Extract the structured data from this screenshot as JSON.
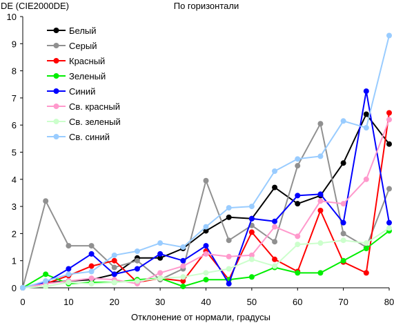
{
  "chart_data": {
    "type": "line",
    "title": "По горизонтали",
    "ylabel": "DE (CIE2000DE)",
    "xlabel": "Отклонение от нормали, градусы",
    "xlim": [
      0,
      80
    ],
    "ylim": [
      0,
      10
    ],
    "x_ticks": [
      0,
      10,
      20,
      30,
      40,
      50,
      60,
      70,
      80
    ],
    "y_ticks": [
      0,
      1,
      2,
      3,
      4,
      5,
      6,
      7,
      8,
      9,
      10
    ],
    "grid": false,
    "legend_position": "top-left",
    "x": [
      0,
      5,
      10,
      15,
      20,
      25,
      30,
      35,
      40,
      45,
      50,
      55,
      60,
      65,
      70,
      75,
      80
    ],
    "series": [
      {
        "name": "Белый",
        "color": "#000000",
        "values": [
          0,
          0.2,
          0.25,
          0.3,
          0.5,
          1.1,
          1.1,
          1.45,
          2.1,
          2.6,
          2.55,
          3.7,
          3.1,
          3.4,
          4.6,
          6.4,
          5.3
        ]
      },
      {
        "name": "Серый",
        "color": "#909090",
        "values": [
          0,
          3.2,
          1.55,
          1.55,
          0.75,
          1.0,
          0.3,
          0.7,
          3.95,
          1.75,
          2.3,
          1.7,
          4.5,
          6.05,
          2.0,
          1.5,
          3.65
        ]
      },
      {
        "name": "Красный",
        "color": "#ff0000",
        "values": [
          0,
          0.15,
          0.45,
          0.8,
          1.0,
          0.2,
          0.35,
          0.25,
          1.35,
          0.3,
          2.05,
          1.05,
          0.6,
          2.85,
          0.95,
          0.55,
          6.45
        ]
      },
      {
        "name": "Зеленый",
        "color": "#00ee00",
        "values": [
          0,
          0.5,
          0.15,
          0.2,
          0.2,
          0.3,
          0.35,
          0.05,
          0.3,
          0.3,
          0.4,
          0.75,
          0.55,
          0.55,
          1.0,
          1.45,
          2.1
        ]
      },
      {
        "name": "Синий",
        "color": "#0000ff",
        "values": [
          0,
          0.2,
          0.7,
          1.25,
          0.5,
          0.7,
          1.25,
          1.0,
          1.55,
          0.15,
          2.55,
          2.45,
          3.4,
          3.45,
          2.4,
          7.25,
          2.4
        ]
      },
      {
        "name": "Св. красный",
        "color": "#ff99cc",
        "values": [
          0,
          0.15,
          0.25,
          0.35,
          0.3,
          0.15,
          0.55,
          0.8,
          1.25,
          1.15,
          1.2,
          2.25,
          1.9,
          3.2,
          3.1,
          4.0,
          6.2
        ]
      },
      {
        "name": "Св. зеленый",
        "color": "#ccffcc",
        "values": [
          0,
          0.05,
          0.2,
          0.15,
          0.2,
          0.25,
          0.35,
          0.4,
          0.55,
          0.7,
          1.05,
          0.8,
          1.6,
          1.65,
          1.75,
          1.65,
          2.2
        ]
      },
      {
        "name": "Св. синий",
        "color": "#99ccff",
        "values": [
          0,
          0.25,
          0.5,
          0.6,
          1.2,
          1.35,
          1.65,
          1.5,
          2.25,
          2.95,
          3.0,
          4.3,
          4.75,
          4.85,
          6.15,
          5.9,
          9.3
        ]
      }
    ]
  }
}
